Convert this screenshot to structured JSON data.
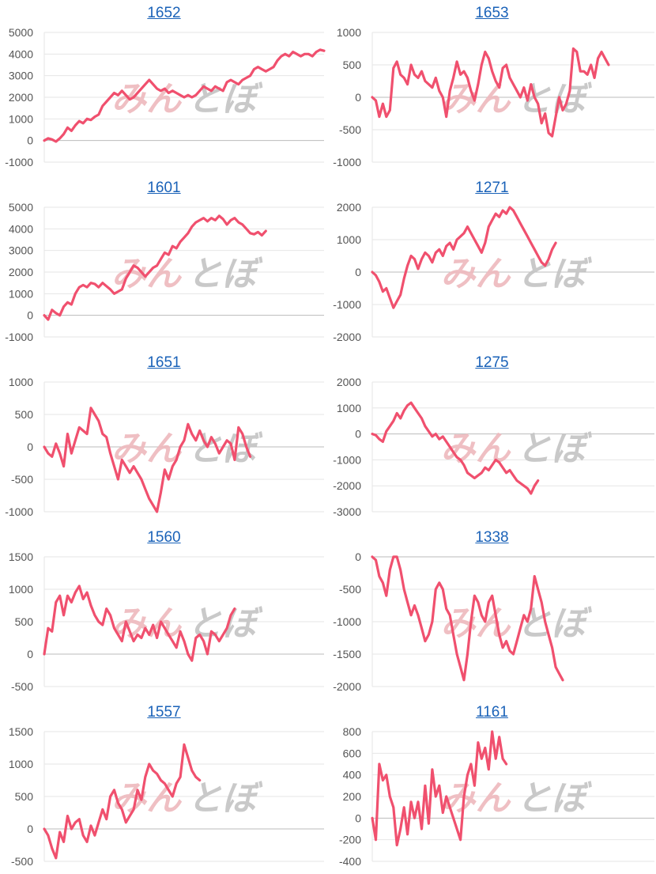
{
  "colors": {
    "line": "#f0506e",
    "grid": "#e6e6e6",
    "zero": "#bbbbbb",
    "tick": "#555555",
    "title_link": "#1a62b8",
    "watermark_left": "#eeb9bd",
    "watermark_right": "#c4c4c4"
  },
  "watermark": {
    "left": "みん",
    "right": "とぼ"
  },
  "chart_data": [
    {
      "type": "line",
      "title": "1652",
      "ylim": [
        -1000,
        5000
      ],
      "yticks": [
        -1000,
        0,
        1000,
        2000,
        3000,
        4000,
        5000
      ],
      "values": [
        0,
        100,
        50,
        -50,
        100,
        300,
        600,
        450,
        700,
        900,
        800,
        1000,
        950,
        1100,
        1200,
        1600,
        1800,
        2000,
        2200,
        2100,
        2300,
        2100,
        1900,
        2000,
        2200,
        2400,
        2600,
        2800,
        2600,
        2400,
        2300,
        2400,
        2200,
        2300,
        2200,
        2100,
        2000,
        2100,
        2000,
        2100,
        2300,
        2500,
        2400,
        2300,
        2500,
        2400,
        2300,
        2700,
        2800,
        2700,
        2600,
        2800,
        2900,
        3000,
        3300,
        3400,
        3300,
        3200,
        3300,
        3400,
        3700,
        3900,
        4000,
        3900,
        4100,
        4000,
        3900,
        4000,
        4000,
        3900,
        4100,
        4200,
        4150
      ]
    },
    {
      "type": "line",
      "title": "1653",
      "ylim": [
        -1000,
        1000
      ],
      "yticks": [
        -1000,
        -500,
        0,
        500,
        1000
      ],
      "values": [
        0,
        -50,
        -300,
        -100,
        -300,
        -200,
        450,
        550,
        350,
        300,
        200,
        500,
        350,
        300,
        400,
        250,
        200,
        150,
        300,
        100,
        0,
        -300,
        100,
        300,
        550,
        350,
        400,
        300,
        100,
        -50,
        200,
        500,
        700,
        600,
        400,
        250,
        150,
        450,
        500,
        300,
        200,
        100,
        0,
        150,
        -50,
        200,
        0,
        -100,
        -400,
        -250,
        -550,
        -600,
        -300,
        0,
        -200,
        -100,
        100,
        750,
        700,
        400,
        400,
        350,
        500,
        300,
        600,
        700,
        600,
        500
      ]
    },
    {
      "type": "line",
      "title": "1601",
      "ylim": [
        -1000,
        5000
      ],
      "yticks": [
        -1000,
        0,
        1000,
        2000,
        3000,
        4000,
        5000
      ],
      "values": [
        0,
        -200,
        250,
        100,
        0,
        400,
        600,
        500,
        1000,
        1300,
        1400,
        1300,
        1500,
        1450,
        1300,
        1500,
        1350,
        1200,
        1000,
        1100,
        1200,
        1700,
        2000,
        2300,
        2200,
        2000,
        1800,
        2000,
        2200,
        2300,
        2600,
        2900,
        2800,
        3200,
        3100,
        3400,
        3600,
        3800,
        4100,
        4300,
        4400,
        4500,
        4350,
        4500,
        4400,
        4600,
        4450,
        4200,
        4400,
        4500,
        4300,
        4200,
        4000,
        3800,
        3750,
        3850,
        3700,
        3900
      ]
    },
    {
      "type": "line",
      "title": "1271",
      "ylim": [
        -2000,
        2000
      ],
      "yticks": [
        -2000,
        -1000,
        0,
        1000,
        2000
      ],
      "values": [
        0,
        -100,
        -300,
        -600,
        -500,
        -800,
        -1100,
        -900,
        -700,
        -200,
        200,
        500,
        400,
        100,
        400,
        600,
        500,
        300,
        600,
        700,
        500,
        800,
        900,
        700,
        1000,
        1100,
        1200,
        1400,
        1200,
        1000,
        800,
        600,
        900,
        1400,
        1600,
        1800,
        1700,
        1900,
        1800,
        2000,
        1900,
        1700,
        1500,
        1300,
        1100,
        900,
        700,
        500,
        300,
        200,
        400,
        700,
        900
      ]
    },
    {
      "type": "line",
      "title": "1651",
      "ylim": [
        -1000,
        1000
      ],
      "yticks": [
        -1000,
        -500,
        0,
        500,
        1000
      ],
      "values": [
        0,
        -100,
        -150,
        50,
        -100,
        -300,
        200,
        -100,
        100,
        300,
        250,
        200,
        600,
        500,
        400,
        200,
        150,
        -100,
        -300,
        -500,
        -200,
        -300,
        -400,
        -300,
        -400,
        -500,
        -650,
        -800,
        -900,
        -1000,
        -700,
        -350,
        -500,
        -300,
        -200,
        0,
        100,
        350,
        200,
        100,
        250,
        100,
        0,
        150,
        50,
        -100,
        0,
        100,
        50,
        -200,
        300,
        200,
        0,
        -150
      ]
    },
    {
      "type": "line",
      "title": "1275",
      "ylim": [
        -3000,
        2000
      ],
      "yticks": [
        -3000,
        -2000,
        -1000,
        0,
        1000,
        2000
      ],
      "values": [
        0,
        -50,
        -200,
        -300,
        100,
        300,
        500,
        800,
        600,
        900,
        1100,
        1200,
        1000,
        800,
        600,
        300,
        100,
        -100,
        0,
        -200,
        -100,
        -300,
        -500,
        -700,
        -900,
        -1000,
        -1200,
        -1500,
        -1600,
        -1700,
        -1600,
        -1500,
        -1300,
        -1400,
        -1200,
        -1000,
        -1100,
        -1300,
        -1500,
        -1400,
        -1600,
        -1800,
        -1900,
        -2000,
        -2100,
        -2300,
        -2000,
        -1800
      ]
    },
    {
      "type": "line",
      "title": "1560",
      "ylim": [
        -500,
        1500
      ],
      "yticks": [
        -500,
        0,
        500,
        1000,
        1500
      ],
      "values": [
        0,
        400,
        350,
        800,
        900,
        600,
        900,
        800,
        950,
        1050,
        850,
        950,
        750,
        600,
        500,
        450,
        700,
        600,
        400,
        300,
        200,
        500,
        350,
        200,
        300,
        250,
        400,
        300,
        450,
        250,
        500,
        400,
        300,
        200,
        100,
        350,
        200,
        0,
        -100,
        250,
        300,
        200,
        0,
        350,
        300,
        200,
        300,
        400,
        600,
        700
      ]
    },
    {
      "type": "line",
      "title": "1338",
      "ylim": [
        -2000,
        0
      ],
      "yticks": [
        -2000,
        -1500,
        -1000,
        -500,
        0
      ],
      "values": [
        0,
        -50,
        -300,
        -400,
        -600,
        -200,
        0,
        0,
        -200,
        -500,
        -700,
        -900,
        -750,
        -900,
        -1100,
        -1300,
        -1200,
        -1000,
        -500,
        -400,
        -500,
        -800,
        -900,
        -1200,
        -1500,
        -1700,
        -1900,
        -1500,
        -1000,
        -600,
        -700,
        -900,
        -1000,
        -700,
        -600,
        -900,
        -1200,
        -1400,
        -1300,
        -1450,
        -1500,
        -1300,
        -1100,
        -900,
        -1000,
        -800,
        -300,
        -500,
        -700,
        -1000,
        -1200,
        -1400,
        -1700,
        -1800,
        -1900
      ]
    },
    {
      "type": "line",
      "title": "1557",
      "ylim": [
        -500,
        1500
      ],
      "yticks": [
        -500,
        0,
        500,
        1000,
        1500
      ],
      "values": [
        0,
        -100,
        -300,
        -450,
        -50,
        -200,
        200,
        0,
        100,
        150,
        -100,
        -200,
        50,
        -100,
        100,
        300,
        150,
        500,
        600,
        400,
        300,
        100,
        200,
        300,
        600,
        450,
        800,
        1000,
        900,
        850,
        750,
        700,
        600,
        500,
        700,
        800,
        1300,
        1100,
        900,
        800,
        750
      ]
    },
    {
      "type": "line",
      "title": "1161",
      "ylim": [
        -400,
        800
      ],
      "yticks": [
        -400,
        -200,
        0,
        200,
        400,
        600,
        800
      ],
      "values": [
        0,
        -200,
        500,
        350,
        400,
        200,
        100,
        -250,
        -100,
        100,
        -150,
        150,
        0,
        150,
        -100,
        300,
        -50,
        450,
        200,
        300,
        50,
        200,
        100,
        0,
        -100,
        -200,
        200,
        400,
        500,
        300,
        700,
        550,
        650,
        450,
        800,
        550,
        750,
        550,
        500
      ]
    }
  ]
}
